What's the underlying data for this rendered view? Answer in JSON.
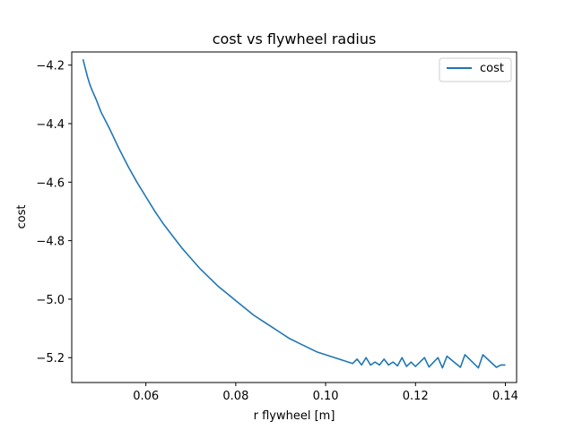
{
  "chart_data": {
    "type": "line",
    "title": "cost vs flywheel radius",
    "xlabel": "r flywheel [m]",
    "ylabel": "cost",
    "xlim": [
      0.0435,
      0.1425
    ],
    "ylim": [
      -5.285,
      -4.155
    ],
    "xticks": [
      {
        "value": 0.06,
        "label": "0.06"
      },
      {
        "value": 0.08,
        "label": "0.08"
      },
      {
        "value": 0.1,
        "label": "0.10"
      },
      {
        "value": 0.12,
        "label": "0.12"
      },
      {
        "value": 0.14,
        "label": "0.14"
      }
    ],
    "yticks": [
      {
        "value": -4.2,
        "label": "−4.2"
      },
      {
        "value": -4.4,
        "label": "−4.4"
      },
      {
        "value": -4.6,
        "label": "−4.6"
      },
      {
        "value": -4.8,
        "label": "−4.8"
      },
      {
        "value": -5.0,
        "label": "−5.0"
      },
      {
        "value": -5.2,
        "label": "−5.2"
      }
    ],
    "grid": false,
    "legend_position": "top-right",
    "series": [
      {
        "name": "cost",
        "color": "#1f77b4",
        "x": [
          0.046,
          0.0465,
          0.047,
          0.0475,
          0.048,
          0.049,
          0.05,
          0.052,
          0.054,
          0.056,
          0.058,
          0.06,
          0.062,
          0.064,
          0.066,
          0.068,
          0.07,
          0.072,
          0.074,
          0.076,
          0.078,
          0.08,
          0.082,
          0.084,
          0.086,
          0.088,
          0.09,
          0.092,
          0.094,
          0.096,
          0.098,
          0.1,
          0.102,
          0.104,
          0.106,
          0.107,
          0.108,
          0.109,
          0.11,
          0.111,
          0.112,
          0.113,
          0.114,
          0.115,
          0.116,
          0.117,
          0.118,
          0.119,
          0.12,
          0.122,
          0.123,
          0.125,
          0.126,
          0.127,
          0.13,
          0.131,
          0.134,
          0.135,
          0.138,
          0.139,
          0.14
        ],
        "y": [
          -4.18,
          -4.21,
          -4.24,
          -4.265,
          -4.285,
          -4.32,
          -4.36,
          -4.42,
          -4.485,
          -4.545,
          -4.6,
          -4.65,
          -4.7,
          -4.745,
          -4.785,
          -4.825,
          -4.86,
          -4.895,
          -4.925,
          -4.955,
          -4.98,
          -5.005,
          -5.03,
          -5.055,
          -5.075,
          -5.095,
          -5.115,
          -5.135,
          -5.15,
          -5.165,
          -5.18,
          -5.19,
          -5.2,
          -5.21,
          -5.22,
          -5.205,
          -5.225,
          -5.2,
          -5.225,
          -5.215,
          -5.225,
          -5.205,
          -5.225,
          -5.215,
          -5.228,
          -5.2,
          -5.23,
          -5.215,
          -5.23,
          -5.2,
          -5.232,
          -5.2,
          -5.235,
          -5.195,
          -5.233,
          -5.19,
          -5.235,
          -5.19,
          -5.233,
          -5.225,
          -5.225
        ]
      }
    ]
  }
}
